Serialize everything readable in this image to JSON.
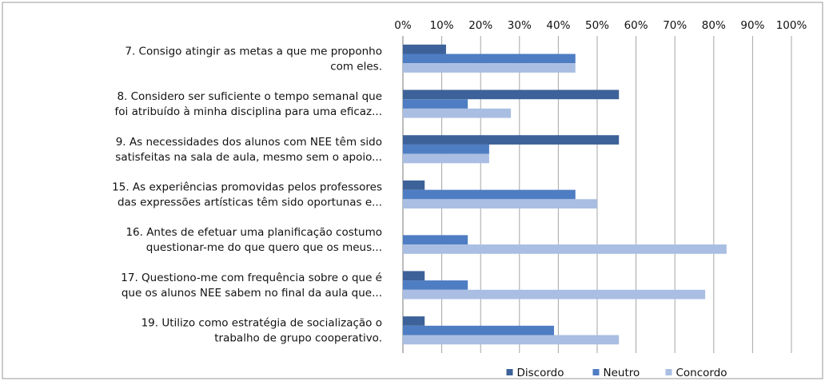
{
  "chart_data": {
    "type": "bar",
    "orientation": "horizontal",
    "categories": [
      [
        "7. Consigo atingir as metas a que me proponho",
        "com eles."
      ],
      [
        "8. Considero ser suficiente o tempo semanal que",
        "foi atribuído à minha disciplina para uma eficaz..."
      ],
      [
        "9. As necessidades dos alunos com NEE têm sido",
        "satisfeitas na sala de aula, mesmo sem o apoio..."
      ],
      [
        "15. As experiências promovidas pelos professores",
        "das expressões artísticas têm sido oportunas e..."
      ],
      [
        "16. Antes de efetuar uma planificação costumo",
        "questionar-me do que quero que os meus..."
      ],
      [
        "17. Questiono-me com frequência sobre o que é",
        "que os alunos NEE sabem no final da aula que..."
      ],
      [
        "19. Utilizo como estratégia de socialização o",
        "trabalho de grupo cooperativo."
      ]
    ],
    "series": [
      {
        "name": "Discordo",
        "color": "#3d6299",
        "values": [
          11.1,
          55.6,
          55.6,
          5.6,
          0,
          5.6,
          5.6
        ]
      },
      {
        "name": "Neutro",
        "color": "#4f7dc3",
        "values": [
          44.4,
          16.7,
          22.2,
          44.4,
          16.7,
          16.7,
          38.9
        ]
      },
      {
        "name": "Concordo",
        "color": "#a9bee2",
        "values": [
          44.4,
          27.8,
          22.2,
          50.0,
          83.3,
          77.8,
          55.6
        ]
      }
    ],
    "xlim": [
      0,
      100
    ],
    "xticks": [
      {
        "value": 0,
        "label": "0%"
      },
      {
        "value": 10,
        "label": "10%"
      },
      {
        "value": 20,
        "label": "20%"
      },
      {
        "value": 30,
        "label": "30%"
      },
      {
        "value": 40,
        "label": "40%"
      },
      {
        "value": 50,
        "label": "50%"
      },
      {
        "value": 60,
        "label": "60%"
      },
      {
        "value": 70,
        "label": "70%"
      },
      {
        "value": 80,
        "label": "80%"
      },
      {
        "value": 90,
        "label": "90%"
      },
      {
        "value": 100,
        "label": "100%"
      }
    ],
    "grid": true,
    "legend": "bottom"
  }
}
